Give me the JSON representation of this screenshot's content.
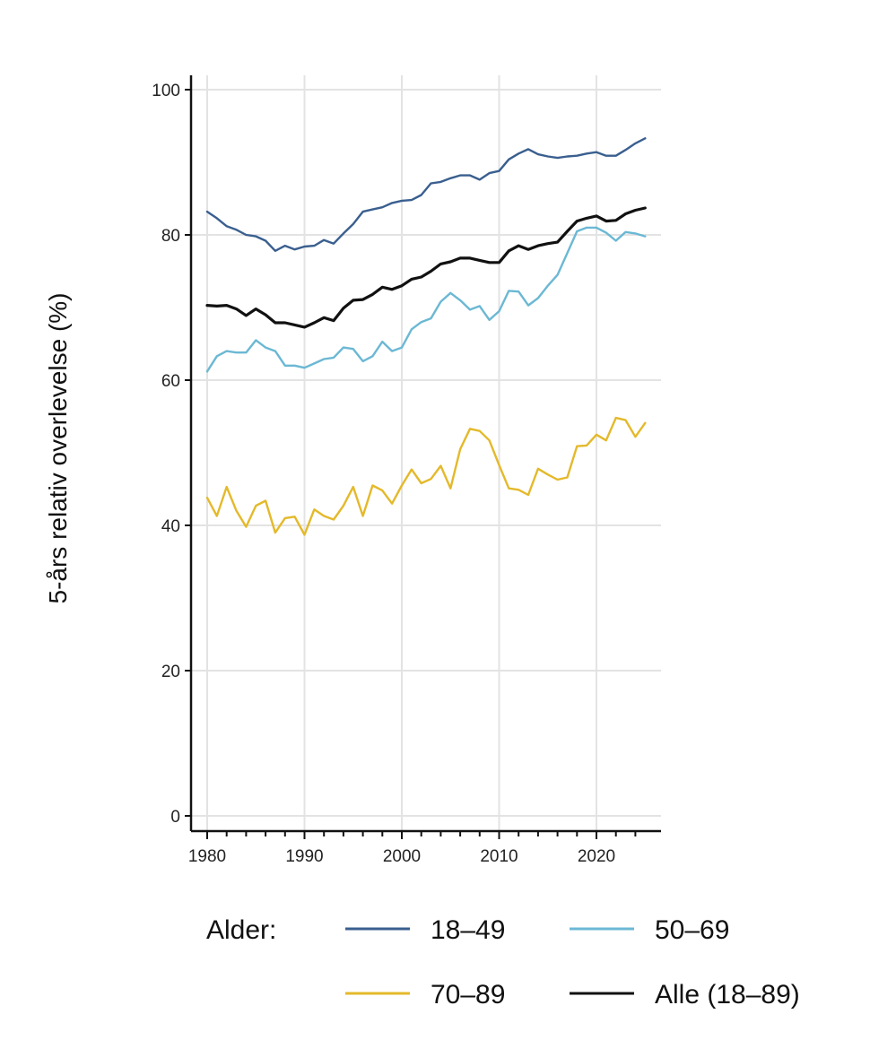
{
  "chart_data": {
    "type": "line",
    "title": "",
    "xlabel": "",
    "ylabel": "5-års relativ overlevelse (%)",
    "xlim": [
      1980,
      2025
    ],
    "ylim": [
      0,
      100
    ],
    "x_ticks": [
      1980,
      1990,
      2000,
      2010,
      2020
    ],
    "y_ticks": [
      0,
      20,
      40,
      60,
      80,
      100
    ],
    "grid": true,
    "legend": {
      "title": "Alder:",
      "position": "bottom"
    },
    "x": [
      1980,
      1981,
      1982,
      1983,
      1984,
      1985,
      1986,
      1987,
      1988,
      1989,
      1990,
      1991,
      1992,
      1993,
      1994,
      1995,
      1996,
      1997,
      1998,
      1999,
      2000,
      2001,
      2002,
      2003,
      2004,
      2005,
      2006,
      2007,
      2008,
      2009,
      2010,
      2011,
      2012,
      2013,
      2014,
      2015,
      2016,
      2017,
      2018,
      2019,
      2020,
      2021,
      2022,
      2023,
      2024,
      2025
    ],
    "series": [
      {
        "name": "18–49",
        "color": "#3a5f8f",
        "values": [
          83.2,
          82.3,
          81.2,
          80.7,
          80.0,
          79.8,
          79.2,
          77.8,
          78.5,
          78.0,
          78.4,
          78.5,
          79.3,
          78.8,
          80.2,
          81.5,
          83.2,
          83.5,
          83.8,
          84.4,
          84.7,
          84.8,
          85.5,
          87.1,
          87.3,
          87.8,
          88.2,
          88.2,
          87.6,
          88.5,
          88.8,
          90.4,
          91.2,
          91.8,
          91.1,
          90.8,
          90.6,
          90.8,
          90.9,
          91.2,
          91.4,
          90.9,
          90.9,
          91.7,
          92.6,
          93.3
        ]
      },
      {
        "name": "50–69",
        "color": "#6bb8d4",
        "values": [
          61.2,
          63.3,
          64.0,
          63.8,
          63.8,
          65.5,
          64.5,
          64.0,
          62.0,
          62.0,
          61.7,
          62.3,
          62.9,
          63.1,
          64.5,
          64.3,
          62.6,
          63.3,
          65.3,
          64.0,
          64.5,
          67.0,
          68.0,
          68.5,
          70.8,
          72.0,
          71.0,
          69.7,
          70.2,
          68.3,
          69.5,
          72.3,
          72.2,
          70.3,
          71.3,
          73.0,
          74.5,
          77.5,
          80.5,
          81.0,
          81.0,
          80.3,
          79.2,
          80.4,
          80.2,
          79.8
        ]
      },
      {
        "name": "70–89",
        "color": "#e4b92a",
        "values": [
          43.8,
          41.3,
          45.3,
          42.0,
          39.8,
          42.7,
          43.4,
          39.0,
          41.0,
          41.2,
          38.7,
          42.2,
          41.3,
          40.8,
          42.7,
          45.3,
          41.3,
          45.5,
          44.8,
          43.0,
          45.5,
          47.7,
          45.8,
          46.4,
          48.2,
          45.1,
          50.5,
          53.3,
          53.0,
          51.7,
          48.3,
          45.1,
          44.9,
          44.2,
          47.8,
          47.0,
          46.3,
          46.6,
          50.9,
          51.0,
          52.5,
          51.7,
          54.8,
          54.5,
          52.2,
          54.1
        ]
      },
      {
        "name": "Alle (18–89)",
        "color": "#111111",
        "values": [
          70.3,
          70.2,
          70.3,
          69.8,
          68.9,
          69.8,
          69.0,
          67.9,
          67.9,
          67.6,
          67.3,
          67.9,
          68.6,
          68.2,
          69.9,
          71.0,
          71.1,
          71.8,
          72.8,
          72.5,
          73.0,
          73.9,
          74.2,
          75.0,
          76.0,
          76.3,
          76.8,
          76.8,
          76.5,
          76.2,
          76.2,
          77.8,
          78.5,
          78.0,
          78.5,
          78.8,
          79.0,
          80.5,
          81.9,
          82.3,
          82.6,
          81.9,
          82.0,
          82.9,
          83.4,
          83.7
        ]
      }
    ]
  }
}
